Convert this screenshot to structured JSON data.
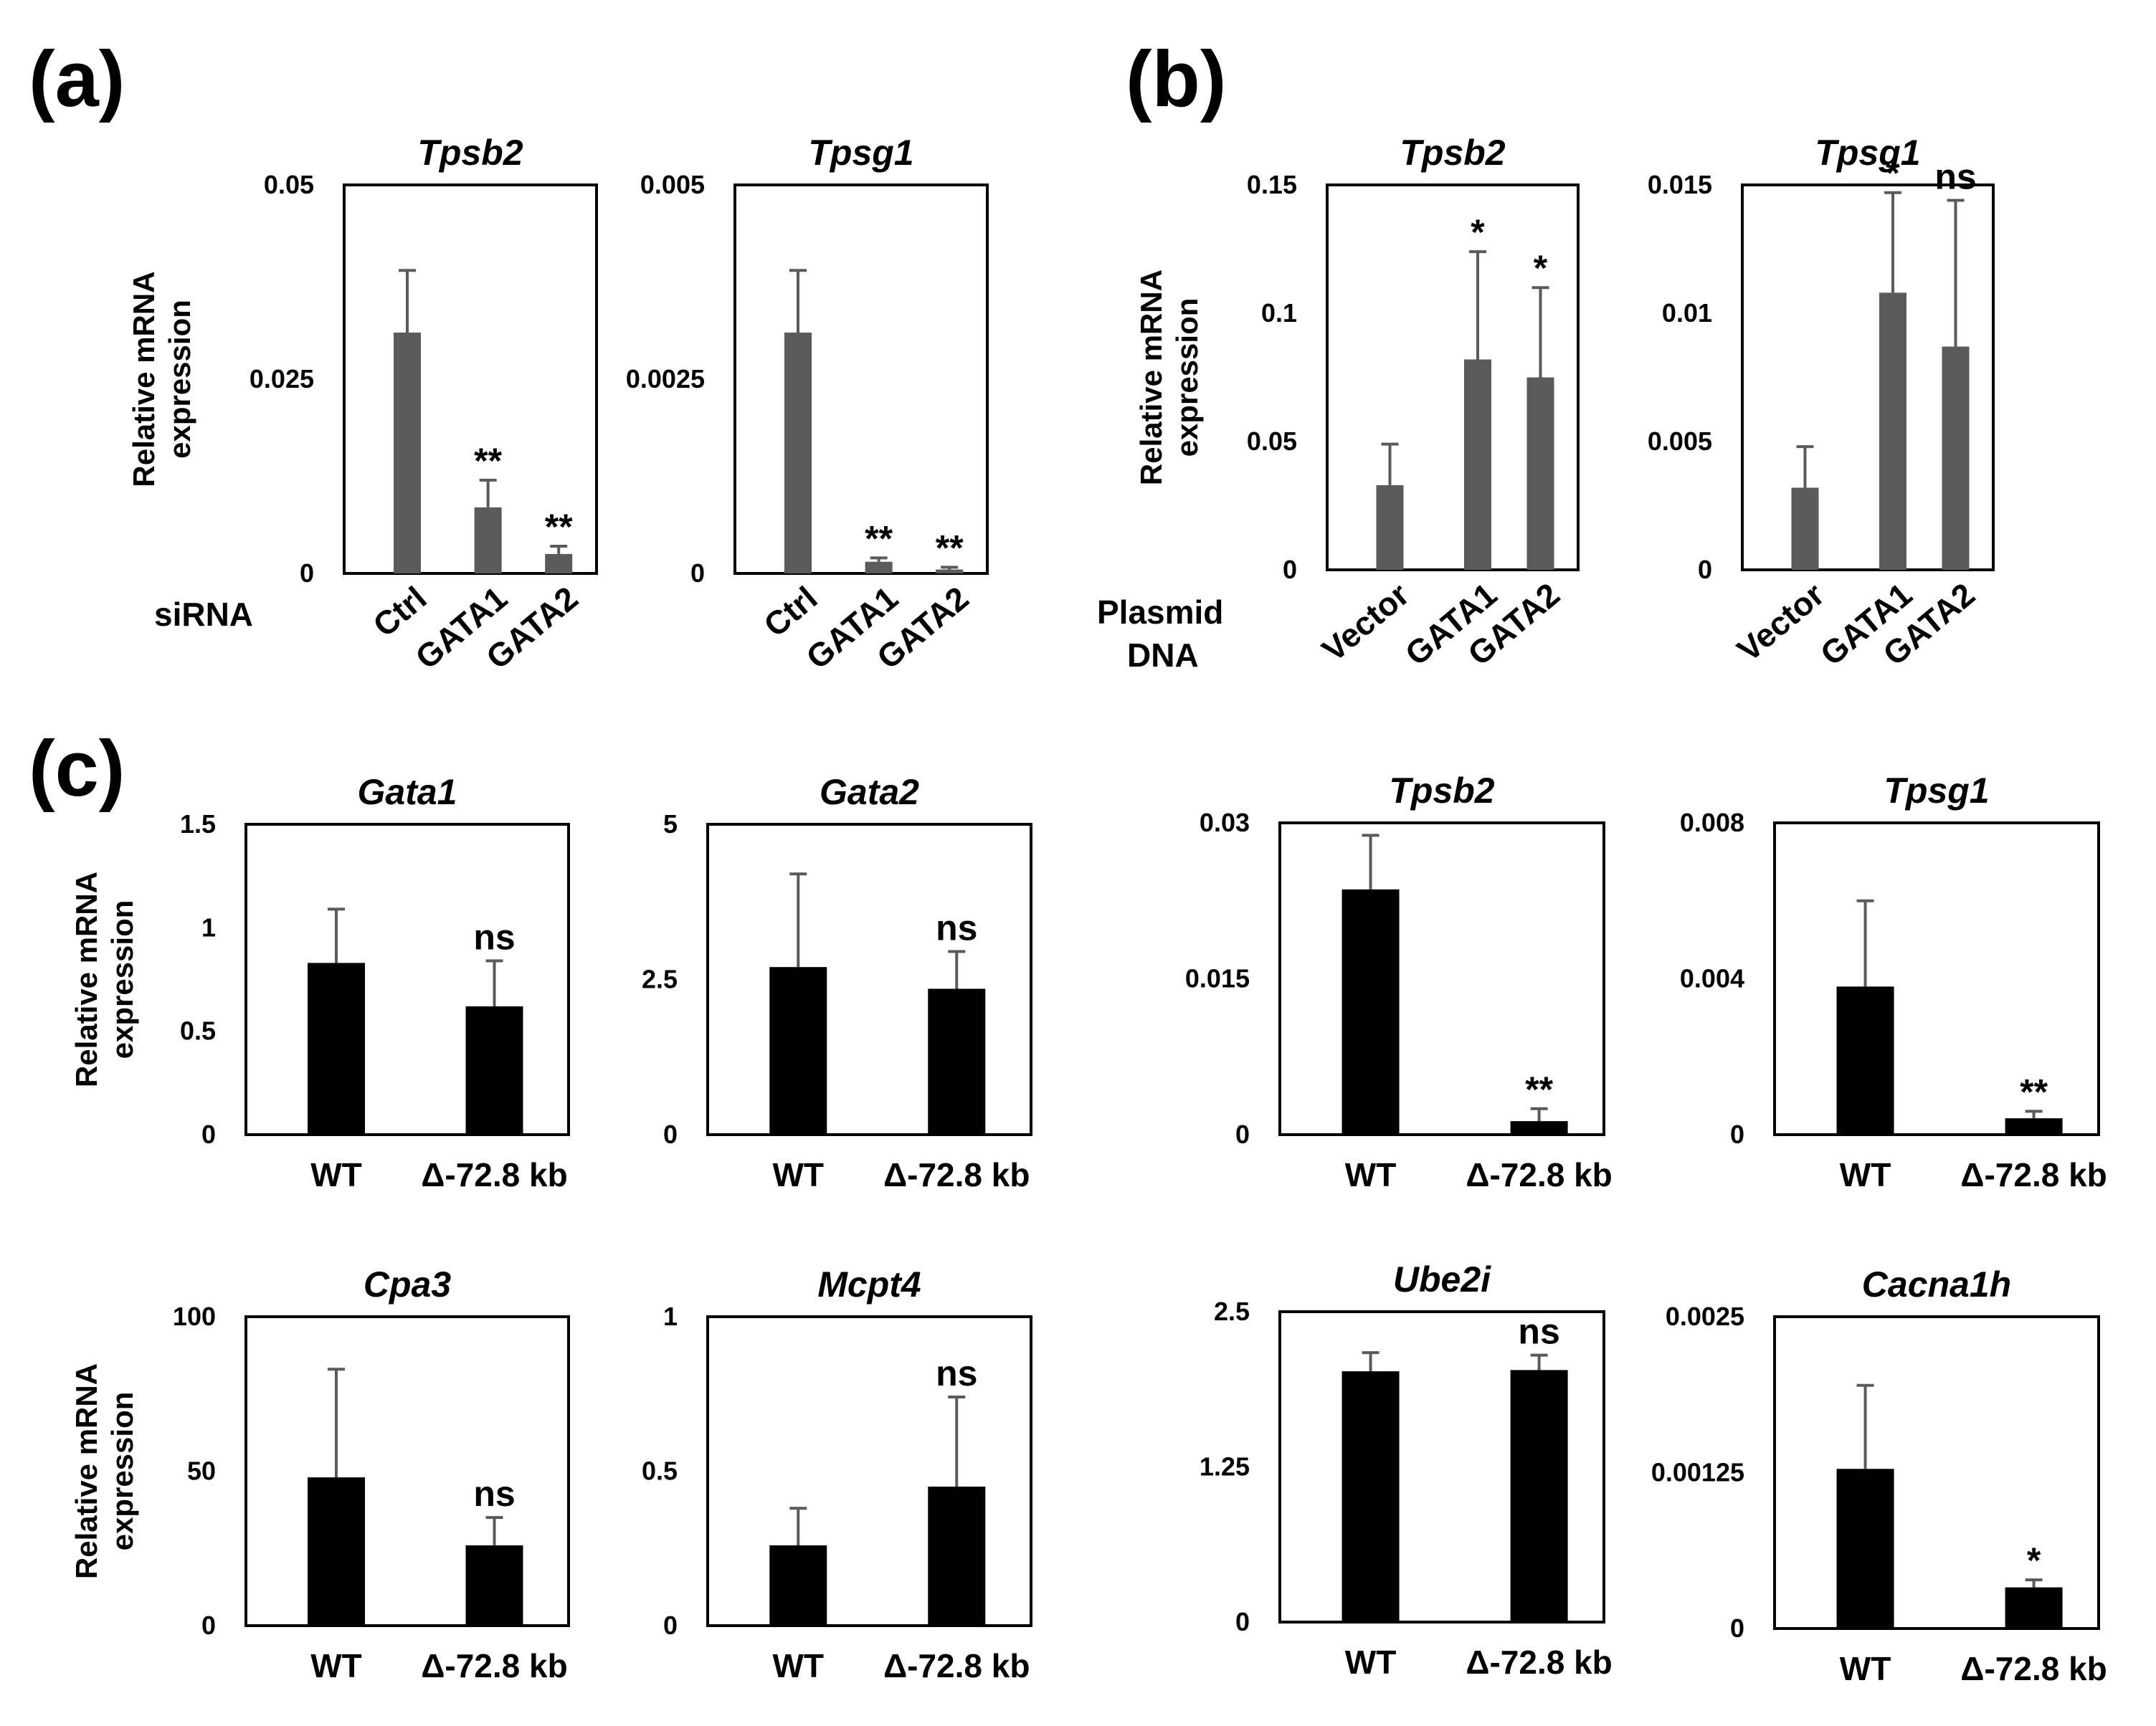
{
  "panel_labels": {
    "a": "(a)",
    "b": "(b)",
    "c": "(c)"
  },
  "row_labels": {
    "siRNA": "siRNA",
    "plasmid_line1": "Plasmid",
    "plasmid_line2": "DNA"
  },
  "ylabel": {
    "line1": "Relative mRNA",
    "line2": "expression"
  },
  "colors": {
    "grey_bar": "#5a5a5a",
    "black_bar": "#000000",
    "axis": "#000000"
  },
  "chart_data": [
    {
      "type": "bar",
      "title": "Tpsb2",
      "categories": [
        "Ctrl",
        "GATA1",
        "GATA2"
      ],
      "values": [
        0.031,
        0.0085,
        0.0025
      ],
      "errors": [
        0.008,
        0.0035,
        0.001
      ],
      "significance": [
        "",
        "**",
        "**"
      ],
      "ylim": [
        0,
        0.05
      ],
      "yticks": [
        0,
        0.025,
        0.05
      ],
      "ytick_labels": [
        "0",
        "0.025",
        "0.05"
      ],
      "ylabel": "Relative mRNA expression",
      "xlabel": "siRNA"
    },
    {
      "type": "bar",
      "title": "Tpsg1",
      "categories": [
        "Ctrl",
        "GATA1",
        "GATA2"
      ],
      "values": [
        0.0031,
        0.00015,
        5e-05
      ],
      "errors": [
        0.0008,
        5e-05,
        3e-05
      ],
      "significance": [
        "",
        "**",
        "**"
      ],
      "ylim": [
        0,
        0.005
      ],
      "yticks": [
        0,
        0.0025,
        0.005
      ],
      "ytick_labels": [
        "0",
        "0.0025",
        "0.005"
      ],
      "ylabel": "",
      "xlabel": "siRNA"
    },
    {
      "type": "bar",
      "title": "Tpsb2",
      "categories": [
        "Vector",
        "GATA1",
        "GATA2"
      ],
      "values": [
        0.033,
        0.082,
        0.075
      ],
      "errors": [
        0.016,
        0.042,
        0.035
      ],
      "significance": [
        "",
        "*",
        "*"
      ],
      "ylim": [
        0,
        0.15
      ],
      "yticks": [
        0,
        0.05,
        0.1,
        0.15
      ],
      "ytick_labels": [
        "0",
        "0.05",
        "0.1",
        "0.15"
      ],
      "ylabel": "Relative mRNA expression",
      "xlabel": "Plasmid DNA"
    },
    {
      "type": "bar",
      "title": "Tpsg1",
      "categories": [
        "Vector",
        "GATA1",
        "GATA2"
      ],
      "values": [
        0.0032,
        0.0108,
        0.0087
      ],
      "errors": [
        0.0016,
        0.0039,
        0.0057
      ],
      "significance": [
        "",
        "*",
        "ns"
      ],
      "ylim": [
        0,
        0.015
      ],
      "yticks": [
        0,
        0.005,
        0.01,
        0.015
      ],
      "ytick_labels": [
        "0",
        "0.005",
        "0.01",
        "0.015"
      ],
      "ylabel": "",
      "xlabel": "Plasmid DNA"
    },
    {
      "type": "bar",
      "title": "Gata1",
      "categories": [
        "WT",
        "Δ-72.8 kb"
      ],
      "values": [
        0.83,
        0.62
      ],
      "errors": [
        0.26,
        0.22
      ],
      "significance": [
        "",
        "ns"
      ],
      "ylim": [
        0,
        1.5
      ],
      "yticks": [
        0,
        0.5,
        1,
        1.5
      ],
      "ytick_labels": [
        "0",
        "0.5",
        "1",
        "1.5"
      ],
      "ylabel": "Relative mRNA expression"
    },
    {
      "type": "bar",
      "title": "Gata2",
      "categories": [
        "WT",
        "Δ-72.8 kb"
      ],
      "values": [
        2.7,
        2.35
      ],
      "errors": [
        1.5,
        0.6
      ],
      "significance": [
        "",
        "ns"
      ],
      "ylim": [
        0,
        5
      ],
      "yticks": [
        0,
        2.5,
        5
      ],
      "ytick_labels": [
        "0",
        "2.5",
        "5"
      ],
      "ylabel": ""
    },
    {
      "type": "bar",
      "title": "Tpsb2",
      "categories": [
        "WT",
        "Δ-72.8 kb"
      ],
      "values": [
        0.0236,
        0.0013
      ],
      "errors": [
        0.0052,
        0.0012
      ],
      "significance": [
        "",
        "**"
      ],
      "ylim": [
        0,
        0.03
      ],
      "yticks": [
        0,
        0.015,
        0.03
      ],
      "ytick_labels": [
        "0",
        "0.015",
        "0.03"
      ],
      "ylabel": ""
    },
    {
      "type": "bar",
      "title": "Tpsg1",
      "categories": [
        "WT",
        "Δ-72.8 kb"
      ],
      "values": [
        0.0038,
        0.00042
      ],
      "errors": [
        0.0022,
        0.00018
      ],
      "significance": [
        "",
        "**"
      ],
      "ylim": [
        0,
        0.008
      ],
      "yticks": [
        0,
        0.004,
        0.008
      ],
      "ytick_labels": [
        "0",
        "0.004",
        "0.008"
      ],
      "ylabel": ""
    },
    {
      "type": "bar",
      "title": "Cpa3",
      "categories": [
        "WT",
        "Δ-72.8 kb"
      ],
      "values": [
        48,
        26
      ],
      "errors": [
        35,
        9
      ],
      "significance": [
        "",
        "ns"
      ],
      "ylim": [
        0,
        100
      ],
      "yticks": [
        0,
        50,
        100
      ],
      "ytick_labels": [
        "0",
        "50",
        "100"
      ],
      "ylabel": "Relative mRNA expression"
    },
    {
      "type": "bar",
      "title": "Mcpt4",
      "categories": [
        "WT",
        "Δ-72.8 kb"
      ],
      "values": [
        0.26,
        0.45
      ],
      "errors": [
        0.12,
        0.29
      ],
      "significance": [
        "",
        "ns"
      ],
      "ylim": [
        0,
        1
      ],
      "yticks": [
        0,
        0.5,
        1
      ],
      "ytick_labels": [
        "0",
        "0.5",
        "1"
      ],
      "ylabel": ""
    },
    {
      "type": "bar",
      "title": "Ube2i",
      "categories": [
        "WT",
        "Δ-72.8 kb"
      ],
      "values": [
        2.02,
        2.03
      ],
      "errors": [
        0.15,
        0.12
      ],
      "significance": [
        "",
        "ns"
      ],
      "ylim": [
        0,
        2.5
      ],
      "yticks": [
        0,
        1.25,
        2.5
      ],
      "ytick_labels": [
        "0",
        "1.25",
        "2.5"
      ],
      "ylabel": ""
    },
    {
      "type": "bar",
      "title": "Cacna1h",
      "categories": [
        "WT",
        "Δ-72.8 kb"
      ],
      "values": [
        0.00128,
        0.00033
      ],
      "errors": [
        0.00067,
        6e-05
      ],
      "significance": [
        "",
        "*"
      ],
      "ylim": [
        0,
        0.0025
      ],
      "yticks": [
        0,
        0.00125,
        0.0025
      ],
      "ytick_labels": [
        "0",
        "0.00125",
        "0.0025"
      ],
      "ylabel": ""
    }
  ]
}
